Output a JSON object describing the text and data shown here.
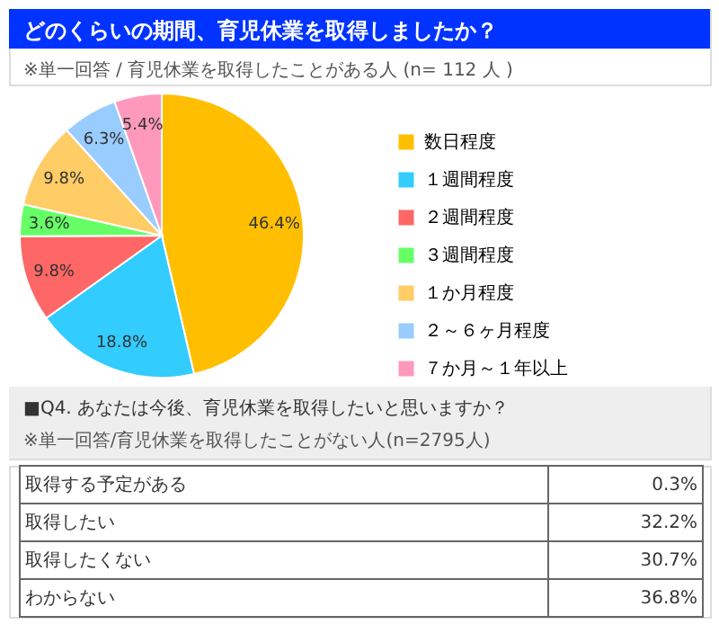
{
  "chart_data": [
    {
      "type": "pie",
      "title": "どのくらいの期間、育児休業を取得しましたか？",
      "subtitle": "※単一回答 / 育児休業を取得したことがある人 (n= 112 人 )",
      "categories": [
        "数日程度",
        "１週間程度",
        "２週間程度",
        "３週間程度",
        "１か月程度",
        "２～６ヶ月程度",
        "７か月～１年以上"
      ],
      "values": [
        46.4,
        18.8,
        9.8,
        3.6,
        9.8,
        6.3,
        5.4
      ],
      "colors": [
        "#ffbf00",
        "#33ccff",
        "#ff6666",
        "#66ff66",
        "#ffcc66",
        "#99ccff",
        "#ff99bb"
      ],
      "value_labels": [
        "46.4%",
        "18.8%",
        "9.8%",
        "3.6%",
        "9.8%",
        "6.3%",
        "5.4%"
      ],
      "legend": "right"
    },
    {
      "type": "other",
      "title": "■Q4. あなたは今後、育児休業を取得したいと思いますか？",
      "subtitle": "※単一回答/育児休業を取得したことがない人(n=2795人)",
      "categories": [
        "取得する予定がある",
        "取得したい",
        "取得したくない",
        "わからない"
      ],
      "values": [
        0.3,
        32.2,
        30.7,
        36.8
      ],
      "value_labels": [
        "0.3%",
        "32.2%",
        "30.7%",
        "36.8%"
      ]
    }
  ]
}
